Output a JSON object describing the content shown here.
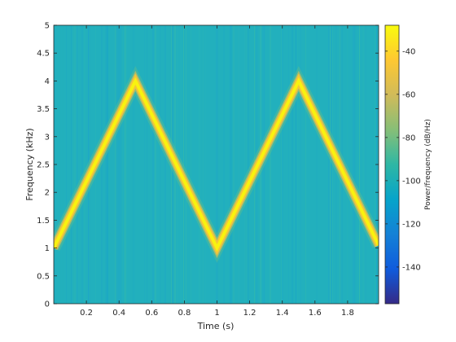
{
  "chart_data": {
    "type": "heatmap",
    "title": "",
    "xlabel": "Time (s)",
    "ylabel": "Frequency (kHz)",
    "xlim": [
      0,
      1.99
    ],
    "ylim": [
      0,
      5
    ],
    "xticks": [
      0.2,
      0.4,
      0.6,
      0.8,
      1,
      1.2,
      1.4,
      1.6,
      1.8
    ],
    "xtick_labels": [
      "0.2",
      "0.4",
      "0.6",
      "0.8",
      "1",
      "1.2",
      "1.4",
      "1.6",
      "1.8"
    ],
    "yticks": [
      0,
      0.5,
      1,
      1.5,
      2,
      2.5,
      3,
      3.5,
      4,
      4.5,
      5
    ],
    "ytick_labels": [
      "0",
      "0.5",
      "1",
      "1.5",
      "2",
      "2.5",
      "3",
      "3.5",
      "4",
      "4.5",
      "5"
    ],
    "ridge_time_s": [
      0,
      0.5,
      1.0,
      1.5,
      1.99
    ],
    "ridge_freq_khz": [
      1.0,
      4.0,
      1.0,
      4.0,
      1.05
    ],
    "background_power_db_per_hz": -95,
    "ridge_power_db_per_hz": -30,
    "grid": false,
    "colormap": "parula",
    "colorbar": {
      "label": "Power/frequency (dB/Hz)",
      "range": [
        -157,
        -28
      ],
      "ticks": [
        -40,
        -60,
        -80,
        -100,
        -120,
        -140
      ],
      "tick_labels": [
        "-40",
        "-60",
        "-80",
        "-100",
        "-120",
        "-140"
      ],
      "colors": [
        "#352a87",
        "#0f5cdd",
        "#1481d6",
        "#06a4ca",
        "#2eb7a4",
        "#87bf77",
        "#d1bb59",
        "#fec832",
        "#f9fb0e"
      ]
    }
  }
}
